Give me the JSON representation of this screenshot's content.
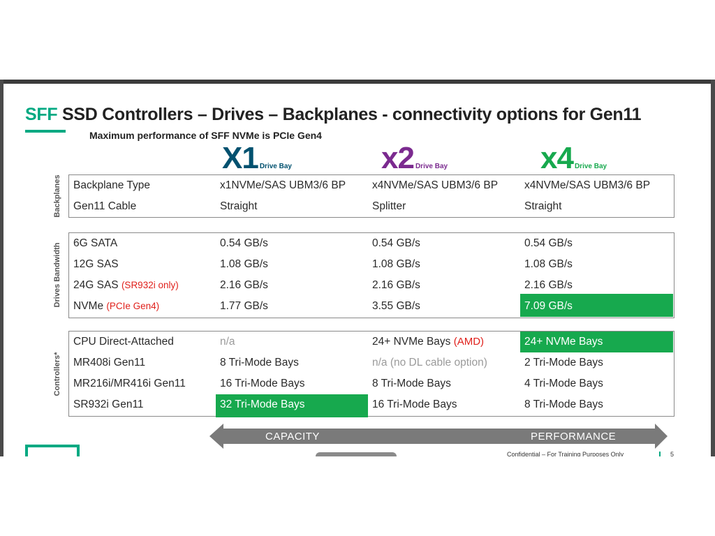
{
  "title": {
    "accent": "SFF",
    "rest": " SSD Controllers – Drives – Backplanes - connectivity options for Gen11"
  },
  "subtitle": "Maximum performance of SFF NVMe is PCIe Gen4",
  "columns": [
    {
      "big": "X1",
      "small": "Drive Bay",
      "color": "#01516f"
    },
    {
      "big": "x2",
      "small": "Drive Bay",
      "color": "#7b2a8f"
    },
    {
      "big": "x4",
      "small": "Drive Bay",
      "color": "#17a94e"
    }
  ],
  "sections": {
    "backplanes": {
      "label": "Backplanes",
      "rows": [
        {
          "label": "Backplane Type",
          "x1": "x1NVMe/SAS UBM3/6 BP",
          "x2": "x4NVMe/SAS UBM3/6 BP",
          "x4": "x4NVMe/SAS UBM3/6 BP"
        },
        {
          "label": "Gen11 Cable",
          "x1": "Straight",
          "x2": "Splitter",
          "x4": "Straight"
        }
      ]
    },
    "bandwidth": {
      "label": "Drives Bandwidth",
      "rows": [
        {
          "label": "6G SATA",
          "note": "",
          "x1": "0.54 GB/s",
          "x2": "0.54 GB/s",
          "x4": "0.54 GB/s"
        },
        {
          "label": "12G SAS",
          "note": "",
          "x1": "1.08 GB/s",
          "x2": "1.08 GB/s",
          "x4": "1.08 GB/s"
        },
        {
          "label": "24G SAS ",
          "note": "(SR932i only)",
          "x1": "2.16 GB/s",
          "x2": "2.16 GB/s",
          "x4": "2.16 GB/s"
        },
        {
          "label": "NVMe ",
          "note": "(PCIe Gen4)",
          "x1": "1.77 GB/s",
          "x2": "3.55 GB/s",
          "x4": "7.09 GB/s"
        }
      ]
    },
    "controllers": {
      "label": "Controllers*",
      "rows": [
        {
          "label": "CPU Direct-Attached",
          "x1": "n/a",
          "x2": "24+ NVMe Bays ",
          "x2_note": "(AMD)",
          "x4": "24+ NVMe Bays"
        },
        {
          "label": "MR408i Gen11",
          "x1": "8 Tri-Mode Bays",
          "x2": "n/a (no DL cable option)",
          "x4": "2 Tri-Mode Bays"
        },
        {
          "label": "MR216i/MR416i Gen11",
          "x1": "16 Tri-Mode Bays",
          "x2": "8 Tri-Mode Bays",
          "x4": "4 Tri-Mode Bays"
        },
        {
          "label": "SR932i Gen11",
          "x1": "32 Tri-Mode Bays",
          "x2": "16 Tri-Mode Bays",
          "x4": "8 Tri-Mode Bays"
        }
      ]
    }
  },
  "arrow": {
    "left_label": "CAPACITY",
    "right_label": "PERFORMANCE",
    "color": "#7a7a7a"
  },
  "footer": {
    "text": "Confidential – For Training Purposes Only",
    "page": "5"
  },
  "colors": {
    "accent": "#01a982",
    "highlight": "#17a94e",
    "note_red": "#e0201b"
  }
}
